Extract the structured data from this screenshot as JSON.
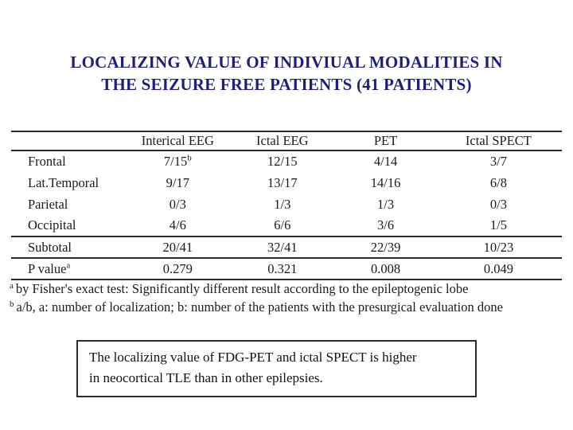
{
  "title": {
    "line1": "LOCALIZING VALUE OF INDIVIUAL MODALITIES IN",
    "line2": "THE SEIZURE FREE PATIENTS (41 PATIENTS)"
  },
  "table": {
    "columns": [
      "Interical EEG",
      "Ictal EEG",
      "PET",
      "Ictal SPECT"
    ],
    "rows": [
      {
        "label": "Frontal",
        "label_sup": "",
        "rule_below": false,
        "cells": [
          {
            "v": "7/15",
            "sup": "b"
          },
          {
            "v": "12/15",
            "sup": ""
          },
          {
            "v": "4/14",
            "sup": ""
          },
          {
            "v": "3/7",
            "sup": ""
          }
        ]
      },
      {
        "label": "Lat.Temporal",
        "label_sup": "",
        "rule_below": false,
        "cells": [
          {
            "v": "9/17",
            "sup": ""
          },
          {
            "v": "13/17",
            "sup": ""
          },
          {
            "v": "14/16",
            "sup": ""
          },
          {
            "v": "6/8",
            "sup": ""
          }
        ]
      },
      {
        "label": "Parietal",
        "label_sup": "",
        "rule_below": false,
        "cells": [
          {
            "v": "0/3",
            "sup": ""
          },
          {
            "v": "1/3",
            "sup": ""
          },
          {
            "v": "1/3",
            "sup": ""
          },
          {
            "v": "0/3",
            "sup": ""
          }
        ]
      },
      {
        "label": "Occipital",
        "label_sup": "",
        "rule_below": true,
        "cells": [
          {
            "v": "4/6",
            "sup": ""
          },
          {
            "v": "6/6",
            "sup": ""
          },
          {
            "v": "3/6",
            "sup": ""
          },
          {
            "v": "1/5",
            "sup": ""
          }
        ]
      },
      {
        "label": "Subtotal",
        "label_sup": "",
        "rule_below": true,
        "cells": [
          {
            "v": "20/41",
            "sup": ""
          },
          {
            "v": "32/41",
            "sup": ""
          },
          {
            "v": "22/39",
            "sup": ""
          },
          {
            "v": "10/23",
            "sup": ""
          }
        ]
      },
      {
        "label": "P value",
        "label_sup": "a",
        "rule_below": true,
        "cells": [
          {
            "v": "0.279",
            "sup": ""
          },
          {
            "v": "0.321",
            "sup": ""
          },
          {
            "v": "0.008",
            "sup": ""
          },
          {
            "v": "0.049",
            "sup": ""
          }
        ]
      }
    ]
  },
  "footnotes": [
    {
      "marker": "a",
      "text": "by Fisher's exact test: Significantly different result according to the epileptogenic lobe"
    },
    {
      "marker": "b",
      "text": "a/b, a: number of localization; b: number of the patients with the presurgical evaluation done"
    }
  ],
  "conclusion": {
    "line1": "The localizing value of FDG-PET and ictal SPECT is higher",
    "line2": "in neocortical TLE than in other epilepsies."
  },
  "colors": {
    "title_navy": "#1f1f78",
    "text_black": "#1a1a1a",
    "rule_black": "#2b2b2b",
    "background": "#ffffff"
  }
}
